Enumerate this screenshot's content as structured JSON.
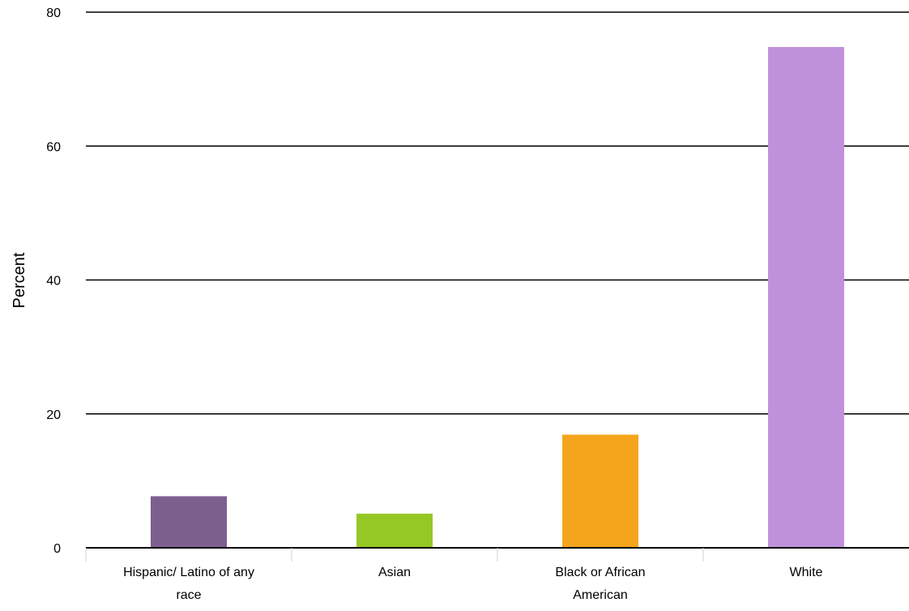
{
  "chart_data": {
    "type": "bar",
    "title": "",
    "xlabel": "",
    "ylabel": "Percent",
    "ylim": [
      0,
      80
    ],
    "yticks": [
      0,
      20,
      40,
      60,
      80
    ],
    "grid": true,
    "legend": "none",
    "categories": [
      [
        "Hispanic/ Latino of any",
        "race"
      ],
      [
        "Asian"
      ],
      [
        "Black or African",
        "American"
      ],
      [
        "White"
      ]
    ],
    "values": [
      7.7,
      5.1,
      16.9,
      74.8
    ],
    "colors": [
      "#7d5f8e",
      "#95c824",
      "#f4a51c",
      "#bf91db"
    ]
  }
}
